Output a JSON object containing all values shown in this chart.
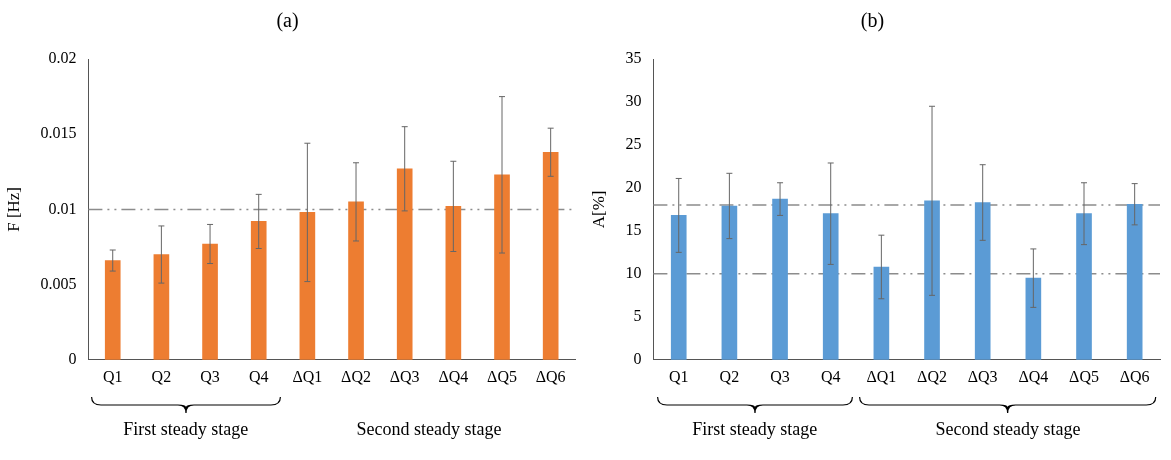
{
  "chart_data": [
    {
      "type": "bar",
      "title": "(a)",
      "ylabel": "F [Hz]",
      "categories": [
        "Q1",
        "Q2",
        "Q3",
        "Q4",
        "ΔQ1",
        "ΔQ2",
        "ΔQ3",
        "ΔQ4",
        "ΔQ5",
        "ΔQ6"
      ],
      "values": [
        0.0066,
        0.007,
        0.0077,
        0.0092,
        0.0098,
        0.0105,
        0.0127,
        0.0102,
        0.0123,
        0.0138
      ],
      "errors": [
        0.0007,
        0.0019,
        0.0013,
        0.0018,
        0.0046,
        0.0026,
        0.0028,
        0.003,
        0.0052,
        0.0016
      ],
      "color": "#ed7d31",
      "ylim": [
        0,
        0.02
      ],
      "yticks": [
        0,
        0.005,
        0.01,
        0.015,
        0.02
      ],
      "grid": false,
      "legend": false,
      "ref_lines": [
        {
          "axis": "y",
          "value": 0.01,
          "color": "#8c8c8c",
          "line_style": "dashed"
        }
      ],
      "annotations": [
        "First steady stage",
        "Second steady stage"
      ]
    },
    {
      "type": "bar",
      "title": "(b)",
      "ylabel": "A[%]",
      "categories": [
        "Q1",
        "Q2",
        "Q3",
        "Q4",
        "ΔQ1",
        "ΔQ2",
        "ΔQ3",
        "ΔQ4",
        "ΔQ5",
        "ΔQ6"
      ],
      "values": [
        16.8,
        17.9,
        18.7,
        17,
        10.8,
        18.5,
        18.3,
        9.5,
        17,
        18.1
      ],
      "errors": [
        4.3,
        3.8,
        1.9,
        5.9,
        3.7,
        11,
        4.4,
        3.4,
        3.6,
        2.4
      ],
      "color": "#5b9bd5",
      "ylim": [
        0,
        35
      ],
      "yticks": [
        0,
        5,
        10,
        15,
        20,
        25,
        30,
        35
      ],
      "grid": false,
      "legend": false,
      "ref_lines": [
        {
          "axis": "y",
          "value": 18,
          "color": "#8c8c8c",
          "line_style": "dashed"
        },
        {
          "axis": "y",
          "value": 10,
          "color": "#8c8c8c",
          "line_style": "dashed"
        }
      ],
      "annotations": [
        "First steady stage",
        "Second steady stage"
      ]
    }
  ]
}
